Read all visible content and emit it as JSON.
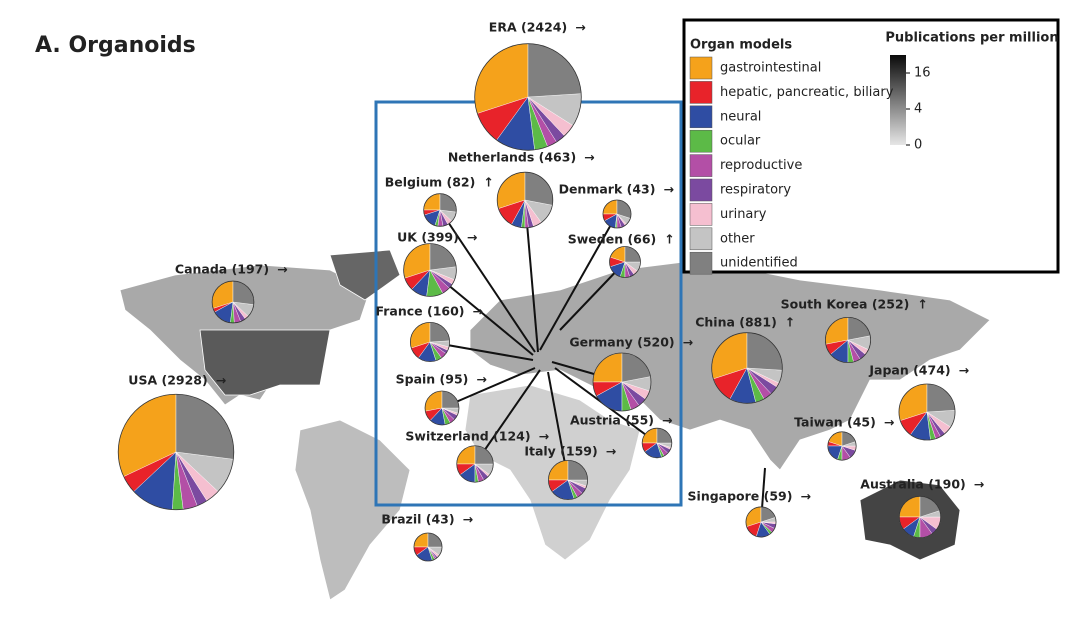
{
  "chart_data": {
    "type": "pie-map",
    "title": "A. Organoids",
    "legend_title": "Organ models",
    "categories": [
      "gastrointestinal",
      "hepatic, pancreatic, biliary",
      "neural",
      "ocular",
      "reproductive",
      "respiratory",
      "urinary",
      "other",
      "unidentified"
    ],
    "colors": [
      "#f5a21b",
      "#e8232a",
      "#2f4da3",
      "#5cba47",
      "#b34fa6",
      "#7b4aa0",
      "#f5bfd0",
      "#c4c4c4",
      "#808080"
    ],
    "colorbar_title": "Publications per million",
    "colorbar": {
      "lim": [
        0,
        25
      ],
      "scale": "sqrt",
      "ticks": [
        16,
        4,
        0
      ]
    },
    "countries": [
      {
        "label": "ERA (2424)",
        "trend": "→",
        "count": 2424,
        "values": [
          30,
          10,
          12,
          4,
          3,
          3,
          4,
          10,
          24
        ]
      },
      {
        "label": "USA (2928)",
        "trend": "→",
        "count": 2928,
        "values": [
          32,
          5,
          12,
          3,
          4,
          3,
          4,
          10,
          27
        ]
      },
      {
        "label": "Canada (197)",
        "trend": "→",
        "count": 197,
        "values": [
          30,
          3,
          15,
          3,
          5,
          4,
          3,
          10,
          27
        ]
      },
      {
        "label": "Netherlands (463)",
        "trend": "→",
        "count": 463,
        "values": [
          30,
          12,
          6,
          2,
          2,
          3,
          5,
          12,
          28
        ]
      },
      {
        "label": "Belgium (82)",
        "trend": "↑",
        "count": 82,
        "values": [
          25,
          5,
          15,
          3,
          5,
          5,
          5,
          10,
          27
        ]
      },
      {
        "label": "Denmark (43)",
        "trend": "→",
        "count": 43,
        "values": [
          25,
          8,
          15,
          2,
          5,
          5,
          2,
          8,
          30
        ]
      },
      {
        "label": "UK (399)",
        "trend": "→",
        "count": 399,
        "values": [
          30,
          8,
          10,
          10,
          5,
          3,
          3,
          8,
          23
        ]
      },
      {
        "label": "Sweden (66)",
        "trend": "↑",
        "count": 66,
        "values": [
          20,
          10,
          15,
          5,
          5,
          5,
          5,
          10,
          25
        ]
      },
      {
        "label": "France (160)",
        "trend": "→",
        "count": 160,
        "values": [
          30,
          10,
          15,
          5,
          5,
          3,
          3,
          5,
          24
        ]
      },
      {
        "label": "Germany (520)",
        "trend": "→",
        "count": 520,
        "values": [
          25,
          8,
          17,
          5,
          5,
          5,
          5,
          8,
          22
        ]
      },
      {
        "label": "Spain (95)",
        "trend": "→",
        "count": 95,
        "values": [
          28,
          10,
          15,
          5,
          5,
          5,
          2,
          5,
          25
        ]
      },
      {
        "label": "Switzerland (124)",
        "trend": "→",
        "count": 124,
        "values": [
          25,
          10,
          15,
          3,
          5,
          5,
          2,
          10,
          25
        ]
      },
      {
        "label": "Austria (55)",
        "trend": "→",
        "count": 55,
        "values": [
          25,
          10,
          20,
          3,
          5,
          5,
          2,
          5,
          25
        ]
      },
      {
        "label": "Italy (159)",
        "trend": "→",
        "count": 159,
        "values": [
          25,
          10,
          20,
          3,
          5,
          5,
          2,
          5,
          25
        ]
      },
      {
        "label": "Brazil (43)",
        "trend": "→",
        "count": 43,
        "values": [
          25,
          10,
          20,
          3,
          2,
          2,
          3,
          10,
          25
        ]
      },
      {
        "label": "China (881)",
        "trend": "↑",
        "count": 881,
        "values": [
          30,
          12,
          12,
          4,
          4,
          4,
          2,
          6,
          26
        ]
      },
      {
        "label": "South Korea (252)",
        "trend": "↑",
        "count": 252,
        "values": [
          28,
          8,
          14,
          4,
          5,
          5,
          4,
          10,
          22
        ]
      },
      {
        "label": "Japan (474)",
        "trend": "→",
        "count": 474,
        "values": [
          30,
          10,
          12,
          3,
          3,
          3,
          5,
          10,
          24
        ]
      },
      {
        "label": "Taiwan (45)",
        "trend": "→",
        "count": 45,
        "values": [
          20,
          5,
          20,
          5,
          10,
          10,
          5,
          5,
          20
        ]
      },
      {
        "label": "Singapore (59)",
        "trend": "→",
        "count": 59,
        "values": [
          30,
          15,
          15,
          3,
          5,
          5,
          2,
          5,
          20
        ]
      },
      {
        "label": "Australia (190)",
        "trend": "→",
        "count": 190,
        "values": [
          25,
          10,
          10,
          5,
          10,
          5,
          10,
          5,
          20
        ]
      }
    ]
  }
}
